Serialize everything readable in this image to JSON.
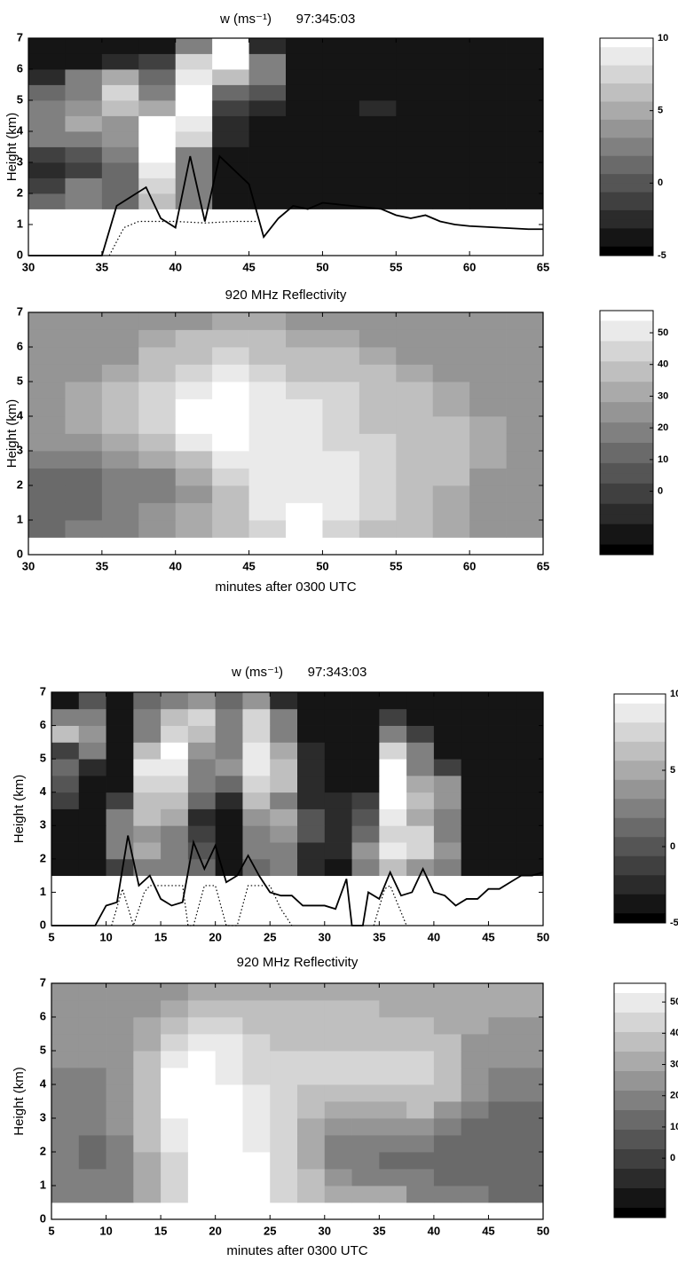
{
  "chart_data": [
    {
      "type": "heatmap",
      "title": "w (ms⁻¹)",
      "label": "97:345:03",
      "ylabel": "Height (km)",
      "xlim": [
        30,
        65
      ],
      "xticks": [
        30,
        35,
        40,
        45,
        50,
        55,
        60,
        65
      ],
      "ylim": [
        0,
        7
      ],
      "yticks": [
        0,
        1,
        2,
        3,
        4,
        5,
        6,
        7
      ],
      "clim": [
        -5,
        10
      ],
      "cticks": [
        -5,
        0,
        5,
        10
      ],
      "x": [
        31.25,
        33.75,
        36.25,
        38.75,
        41.25,
        43.75,
        46.25,
        48.75,
        51.25,
        53.75,
        56.25,
        58.75,
        61.25,
        63.75
      ],
      "y": [
        1.75,
        2.25,
        2.75,
        3.25,
        3.75,
        4.25,
        4.75,
        5.25,
        5.75,
        6.25,
        6.75
      ],
      "z": [
        [
          1,
          2,
          1,
          6,
          3,
          -4,
          -4,
          -4,
          -4,
          -4,
          -4,
          -4,
          -4,
          -4
        ],
        [
          -1,
          3,
          1,
          8,
          2,
          -4,
          -4,
          -4,
          -4,
          -4,
          -4,
          -4,
          -4,
          -4
        ],
        [
          -2,
          -1,
          1,
          9,
          2,
          -4,
          -4,
          -4,
          -4,
          -4,
          -4,
          -4,
          -4,
          -4
        ],
        [
          -1,
          0,
          2,
          10,
          3,
          -4,
          -4,
          -4,
          -4,
          -4,
          -4,
          -4,
          -4,
          -4
        ],
        [
          2,
          3,
          4,
          10,
          7,
          -3,
          -4,
          -4,
          -4,
          -4,
          -4,
          -4,
          -4,
          -4
        ],
        [
          3,
          5,
          4,
          10,
          9,
          -2,
          -4,
          -4,
          -4,
          -4,
          -4,
          -4,
          -4,
          -4
        ],
        [
          3,
          4,
          6,
          5,
          10,
          -1,
          -3,
          -4,
          -4,
          -3,
          -4,
          -4,
          -4,
          -4
        ],
        [
          1,
          3,
          7,
          2,
          10,
          1,
          0,
          -4,
          -4,
          -4,
          -4,
          -4,
          -4,
          -4
        ],
        [
          -3,
          2,
          5,
          1,
          9,
          6,
          3,
          -4,
          -4,
          -4,
          -4,
          -4,
          -4,
          -4
        ],
        [
          -4,
          -4,
          -3,
          -1,
          7,
          10,
          2,
          -4,
          -4,
          -4,
          -4,
          -4,
          -4,
          -4
        ],
        [
          -4,
          -4,
          -4,
          -4,
          3,
          10,
          -3,
          -4,
          -4,
          -4,
          -4,
          -4,
          -4,
          -4
        ]
      ],
      "lines": [
        {
          "style": "solid",
          "x": [
            30,
            35,
            36,
            37,
            38,
            39,
            40,
            41,
            42,
            43,
            45,
            46,
            47,
            48,
            49,
            50,
            52,
            54,
            55,
            56,
            57,
            58,
            59,
            60,
            62,
            64,
            65
          ],
          "values": [
            0,
            0,
            1.6,
            1.9,
            2.2,
            1.2,
            0.9,
            3.2,
            1.1,
            3.2,
            2.3,
            0.6,
            1.2,
            1.6,
            1.5,
            1.7,
            1.6,
            1.5,
            1.3,
            1.2,
            1.3,
            1.1,
            1.0,
            0.95,
            0.9,
            0.85,
            0.85
          ]
        },
        {
          "style": "dotted",
          "x": [
            35.5,
            36.5,
            37.5,
            40,
            42,
            44,
            45.5
          ],
          "values": [
            0,
            0.9,
            1.1,
            1.1,
            1.05,
            1.1,
            1.1
          ]
        }
      ]
    },
    {
      "type": "heatmap",
      "title": "920 MHz  Reflectivity",
      "ylabel": "Height (km)",
      "xlabel": "minutes after 0300 UTC",
      "xlim": [
        30,
        65
      ],
      "xticks": [
        30,
        35,
        40,
        45,
        50,
        55,
        60,
        65
      ],
      "ylim": [
        0,
        7
      ],
      "yticks": [
        0,
        1,
        2,
        3,
        4,
        5,
        6,
        7
      ],
      "clim": [
        -20,
        57
      ],
      "cticks": [
        0,
        10,
        20,
        30,
        40,
        50
      ],
      "x": [
        31.25,
        33.75,
        36.25,
        38.75,
        41.25,
        43.75,
        46.25,
        48.75,
        51.25,
        53.75,
        56.25,
        58.75,
        61.25,
        63.75
      ],
      "y": [
        0.75,
        1.25,
        1.75,
        2.25,
        2.75,
        3.25,
        3.75,
        4.25,
        4.75,
        5.25,
        5.75,
        6.25,
        6.75
      ],
      "z": [
        [
          15,
          20,
          20,
          25,
          30,
          35,
          45,
          55,
          45,
          40,
          35,
          30,
          25,
          25
        ],
        [
          15,
          15,
          20,
          25,
          30,
          40,
          50,
          55,
          50,
          45,
          40,
          30,
          25,
          25
        ],
        [
          10,
          15,
          20,
          20,
          25,
          40,
          50,
          50,
          50,
          45,
          40,
          30,
          25,
          25
        ],
        [
          15,
          15,
          20,
          20,
          30,
          45,
          50,
          50,
          50,
          45,
          40,
          35,
          25,
          25
        ],
        [
          20,
          20,
          25,
          30,
          40,
          50,
          50,
          50,
          50,
          45,
          40,
          35,
          30,
          25
        ],
        [
          25,
          25,
          30,
          40,
          50,
          55,
          50,
          50,
          45,
          45,
          40,
          35,
          30,
          25
        ],
        [
          25,
          30,
          35,
          45,
          55,
          55,
          50,
          50,
          45,
          40,
          40,
          35,
          30,
          25
        ],
        [
          25,
          30,
          40,
          45,
          55,
          55,
          50,
          50,
          45,
          40,
          35,
          30,
          25,
          25
        ],
        [
          25,
          30,
          35,
          45,
          50,
          55,
          50,
          45,
          45,
          40,
          35,
          30,
          25,
          25
        ],
        [
          25,
          25,
          30,
          40,
          45,
          50,
          45,
          40,
          40,
          35,
          30,
          25,
          25,
          25
        ],
        [
          25,
          25,
          25,
          35,
          40,
          45,
          40,
          35,
          35,
          30,
          25,
          25,
          25,
          25
        ],
        [
          25,
          25,
          25,
          30,
          35,
          35,
          35,
          30,
          30,
          25,
          25,
          25,
          25,
          25
        ],
        [
          25,
          25,
          25,
          25,
          25,
          30,
          30,
          25,
          25,
          25,
          25,
          25,
          25,
          25
        ]
      ]
    },
    {
      "type": "heatmap",
      "title": "w (ms⁻¹)",
      "label": "97:343:03",
      "ylabel": "Height (km)",
      "xlim": [
        5,
        50
      ],
      "xticks": [
        5,
        10,
        15,
        20,
        25,
        30,
        35,
        40,
        45,
        50
      ],
      "ylim": [
        0,
        7
      ],
      "yticks": [
        0,
        1,
        2,
        3,
        4,
        5,
        6,
        7
      ],
      "clim": [
        -5,
        10
      ],
      "cticks": [
        -5,
        0,
        5,
        10
      ],
      "x": [
        6.25,
        8.75,
        11.25,
        13.75,
        16.25,
        18.75,
        21.25,
        23.75,
        26.25,
        28.75,
        31.25,
        33.75,
        36.25,
        38.75,
        41.25,
        43.75,
        46.25,
        48.75
      ],
      "y": [
        1.75,
        2.25,
        2.75,
        3.25,
        3.75,
        4.25,
        4.75,
        5.25,
        5.75,
        6.25,
        6.75
      ],
      "z": [
        [
          -4,
          -4,
          -1,
          2,
          3,
          1,
          -4,
          1,
          2,
          -2,
          -4,
          3,
          6,
          4,
          2,
          -4,
          -4,
          -4
        ],
        [
          -4,
          -4,
          2,
          5,
          3,
          0,
          -4,
          3,
          2,
          -2,
          -2,
          4,
          9,
          7,
          4,
          -4,
          -4,
          -4
        ],
        [
          -4,
          -4,
          3,
          4,
          2,
          -1,
          -4,
          3,
          4,
          0,
          -3,
          1,
          8,
          7,
          3,
          -4,
          -4,
          -4
        ],
        [
          -4,
          -4,
          3,
          6,
          5,
          -2,
          -4,
          4,
          5,
          0,
          -2,
          0,
          9,
          5,
          3,
          -4,
          -4,
          -4
        ],
        [
          -1,
          -4,
          -1,
          6,
          6,
          1,
          -3,
          6,
          3,
          -2,
          -3,
          -1,
          10,
          6,
          4,
          -4,
          -4,
          -4
        ],
        [
          0,
          -4,
          -4,
          8,
          8,
          2,
          1,
          8,
          6,
          -3,
          -4,
          -4,
          10,
          5,
          4,
          -4,
          -4,
          -4
        ],
        [
          1,
          -2,
          -4,
          9,
          9,
          3,
          4,
          9,
          6,
          -3,
          -4,
          -4,
          10,
          3,
          -1,
          -4,
          -4,
          -4
        ],
        [
          -1,
          2,
          -4,
          6,
          10,
          4,
          3,
          9,
          5,
          -2,
          -4,
          -4,
          8,
          2,
          -4,
          -4,
          -4,
          -4
        ],
        [
          6,
          4,
          -4,
          3,
          8,
          6,
          2,
          8,
          3,
          -4,
          -4,
          -4,
          3,
          -1,
          -4,
          -4,
          -4,
          -4
        ],
        [
          2,
          3,
          -4,
          3,
          6,
          8,
          2,
          7,
          2,
          -4,
          -4,
          -4,
          -1,
          -4,
          -4,
          -4,
          -4,
          -4
        ],
        [
          -4,
          0,
          -4,
          1,
          3,
          4,
          1,
          4,
          -2,
          -4,
          -4,
          -4,
          -4,
          -4,
          -4,
          -4,
          -4,
          -4
        ]
      ],
      "lines": [
        {
          "style": "solid",
          "x": [
            5,
            9,
            10,
            11,
            12,
            13,
            14,
            15,
            16,
            17,
            18,
            19,
            20,
            21,
            22,
            23,
            24,
            25,
            26,
            27,
            28,
            29,
            30,
            31,
            32,
            32.5,
            33.5,
            34,
            35,
            36,
            37,
            38,
            39,
            40,
            41,
            42,
            43,
            44,
            45,
            46,
            47,
            48,
            49,
            50
          ],
          "values": [
            0,
            0,
            0.6,
            0.7,
            2.7,
            1.2,
            1.5,
            0.8,
            0.6,
            0.7,
            2.5,
            1.7,
            2.4,
            1.3,
            1.5,
            2.1,
            1.5,
            1.0,
            0.9,
            0.9,
            0.6,
            0.6,
            0.6,
            0.5,
            1.4,
            0,
            0,
            1.0,
            0.8,
            1.6,
            0.9,
            1.0,
            1.7,
            1.0,
            0.9,
            0.6,
            0.8,
            0.8,
            1.1,
            1.1,
            1.3,
            1.5,
            1.5,
            1.6
          ]
        },
        {
          "style": "dotted",
          "x": [
            10.5,
            11.5,
            12.5,
            13.5,
            14,
            17,
            17.5,
            18,
            19,
            20,
            21,
            22,
            23,
            24,
            25,
            26,
            27,
            28,
            34.5,
            35.5,
            36,
            37.5
          ],
          "values": [
            0,
            1.1,
            0,
            1.0,
            1.2,
            1.2,
            0,
            0,
            1.2,
            1.2,
            0,
            0,
            1.2,
            1.2,
            1.2,
            0.5,
            0,
            null,
            0,
            1.1,
            1.2,
            0
          ]
        }
      ]
    },
    {
      "type": "heatmap",
      "title": "920 MHz  Reflectivity",
      "ylabel": "Height (km)",
      "xlabel": "minutes after 0300 UTC",
      "xlim": [
        5,
        50
      ],
      "xticks": [
        5,
        10,
        15,
        20,
        25,
        30,
        35,
        40,
        45,
        50
      ],
      "ylim": [
        0,
        7
      ],
      "yticks": [
        0,
        1,
        2,
        3,
        4,
        5,
        6,
        7
      ],
      "clim": [
        -19,
        56
      ],
      "cticks": [
        0,
        10,
        20,
        30,
        40,
        50
      ],
      "x": [
        6.25,
        8.75,
        11.25,
        13.75,
        16.25,
        18.75,
        21.25,
        23.75,
        26.25,
        28.75,
        31.25,
        33.75,
        36.25,
        38.75,
        41.25,
        43.75,
        46.25,
        48.75
      ],
      "y": [
        0.75,
        1.25,
        1.75,
        2.25,
        2.75,
        3.25,
        3.75,
        4.25,
        4.75,
        5.25,
        5.75,
        6.25,
        6.75
      ],
      "z": [
        [
          20,
          20,
          20,
          30,
          45,
          55,
          55,
          55,
          45,
          35,
          30,
          30,
          30,
          20,
          20,
          20,
          15,
          15
        ],
        [
          20,
          20,
          20,
          30,
          45,
          55,
          55,
          55,
          45,
          35,
          25,
          20,
          20,
          20,
          15,
          15,
          15,
          15
        ],
        [
          20,
          15,
          20,
          30,
          45,
          55,
          55,
          55,
          45,
          30,
          20,
          20,
          15,
          15,
          15,
          15,
          15,
          15
        ],
        [
          20,
          15,
          20,
          35,
          50,
          55,
          55,
          50,
          45,
          30,
          20,
          20,
          20,
          20,
          15,
          15,
          15,
          15
        ],
        [
          20,
          20,
          25,
          35,
          50,
          55,
          55,
          50,
          45,
          30,
          25,
          25,
          25,
          25,
          20,
          15,
          15,
          15
        ],
        [
          20,
          20,
          25,
          40,
          55,
          55,
          55,
          50,
          45,
          35,
          30,
          30,
          30,
          35,
          25,
          20,
          15,
          15
        ],
        [
          20,
          20,
          25,
          40,
          55,
          55,
          55,
          50,
          45,
          40,
          40,
          40,
          40,
          40,
          35,
          25,
          20,
          20
        ],
        [
          20,
          20,
          25,
          40,
          55,
          55,
          50,
          45,
          45,
          45,
          45,
          45,
          45,
          45,
          35,
          25,
          20,
          20
        ],
        [
          25,
          25,
          25,
          35,
          50,
          55,
          50,
          45,
          45,
          45,
          45,
          45,
          45,
          45,
          35,
          25,
          25,
          25
        ],
        [
          25,
          25,
          25,
          30,
          45,
          50,
          50,
          45,
          40,
          40,
          40,
          40,
          40,
          40,
          35,
          25,
          25,
          25
        ],
        [
          25,
          25,
          25,
          30,
          35,
          45,
          45,
          40,
          35,
          40,
          40,
          40,
          40,
          35,
          30,
          30,
          25,
          25
        ],
        [
          25,
          25,
          25,
          25,
          30,
          35,
          40,
          35,
          35,
          35,
          35,
          35,
          30,
          30,
          30,
          30,
          30,
          30
        ],
        [
          25,
          25,
          25,
          25,
          25,
          30,
          30,
          30,
          30,
          30,
          30,
          30,
          30,
          30,
          30,
          30,
          30,
          30
        ]
      ]
    }
  ]
}
